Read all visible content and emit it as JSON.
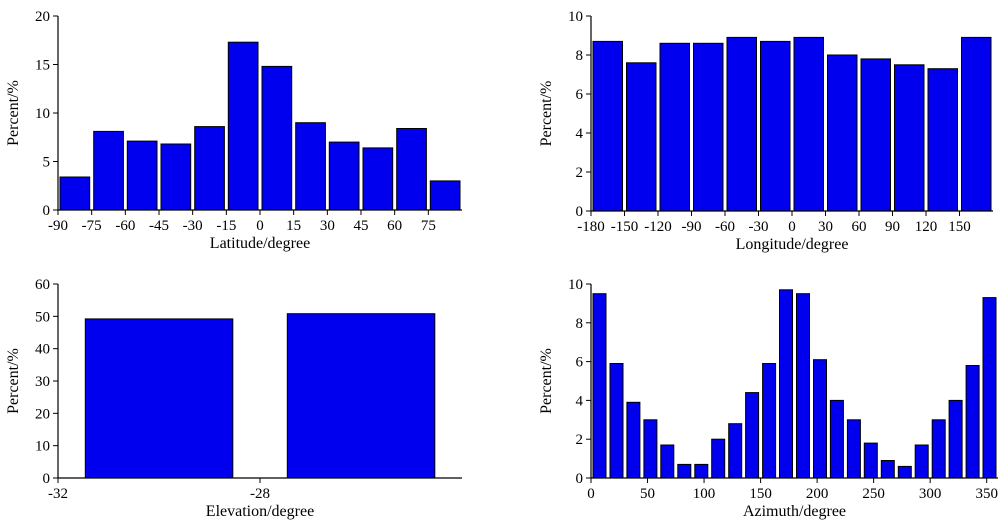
{
  "style": {
    "bar_fill": "#0000ee",
    "bar_stroke": "#000000",
    "axis_color": "#000000"
  },
  "chart_data": [
    {
      "id": "latitude",
      "type": "bar",
      "xlabel": "Latitude/degree",
      "ylabel": "Percent/%",
      "xlim": [
        -90,
        90
      ],
      "ylim": [
        0,
        20
      ],
      "yticks": [
        0,
        5,
        10,
        15,
        20
      ],
      "xticks": [
        -90,
        -75,
        -60,
        -45,
        -30,
        -15,
        0,
        15,
        30,
        45,
        60,
        75
      ],
      "bin_width": 15,
      "bins": [
        -90,
        -75,
        -60,
        -45,
        -30,
        -15,
        0,
        15,
        30,
        45,
        60,
        75
      ],
      "values": [
        3.4,
        8.1,
        7.1,
        6.8,
        8.6,
        17.3,
        14.8,
        9.0,
        7.0,
        6.4,
        8.4,
        3.0
      ]
    },
    {
      "id": "longitude",
      "type": "bar",
      "xlabel": "Longitude/degree",
      "ylabel": "Percent/%",
      "xlim": [
        -180,
        180
      ],
      "ylim": [
        0,
        10
      ],
      "yticks": [
        0,
        2,
        4,
        6,
        8,
        10
      ],
      "xticks": [
        -180,
        -150,
        -120,
        -90,
        -60,
        -30,
        0,
        30,
        60,
        90,
        120,
        150
      ],
      "bin_width": 30,
      "bins": [
        -180,
        -150,
        -120,
        -90,
        -60,
        -30,
        0,
        30,
        60,
        90,
        120,
        150
      ],
      "values": [
        8.7,
        7.6,
        8.6,
        8.6,
        8.9,
        8.7,
        8.9,
        8.0,
        7.8,
        7.5,
        7.3,
        8.9
      ]
    },
    {
      "id": "elevation",
      "type": "bar",
      "xlabel": "Elevation/degree",
      "ylabel": "Percent/%",
      "xlim": [
        -32,
        -24
      ],
      "ylim": [
        0,
        60
      ],
      "yticks": [
        0,
        10,
        20,
        30,
        40,
        50,
        60
      ],
      "xticks": [
        -32,
        -28
      ],
      "bin_width": 3,
      "bins": [
        -31.5,
        -27.5
      ],
      "values": [
        49.2,
        50.8
      ]
    },
    {
      "id": "azimuth",
      "type": "bar",
      "xlabel": "Azimuth/degree",
      "ylabel": "Percent/%",
      "xlim": [
        0,
        360
      ],
      "ylim": [
        0,
        10
      ],
      "yticks": [
        0,
        2,
        4,
        6,
        8,
        10
      ],
      "xticks": [
        0,
        50,
        100,
        150,
        200,
        250,
        300,
        350
      ],
      "bin_width": 15,
      "bins": [
        0,
        15,
        30,
        45,
        60,
        75,
        90,
        105,
        120,
        135,
        150,
        165,
        180,
        195,
        210,
        225,
        240,
        255,
        270,
        285,
        300,
        315,
        330,
        345
      ],
      "values": [
        9.5,
        5.9,
        3.9,
        3.0,
        1.7,
        0.7,
        0.7,
        2.0,
        2.8,
        4.4,
        5.9,
        9.7,
        9.5,
        6.1,
        4.0,
        3.0,
        1.8,
        0.9,
        0.6,
        1.7,
        3.0,
        4.0,
        5.8,
        9.3
      ]
    }
  ]
}
